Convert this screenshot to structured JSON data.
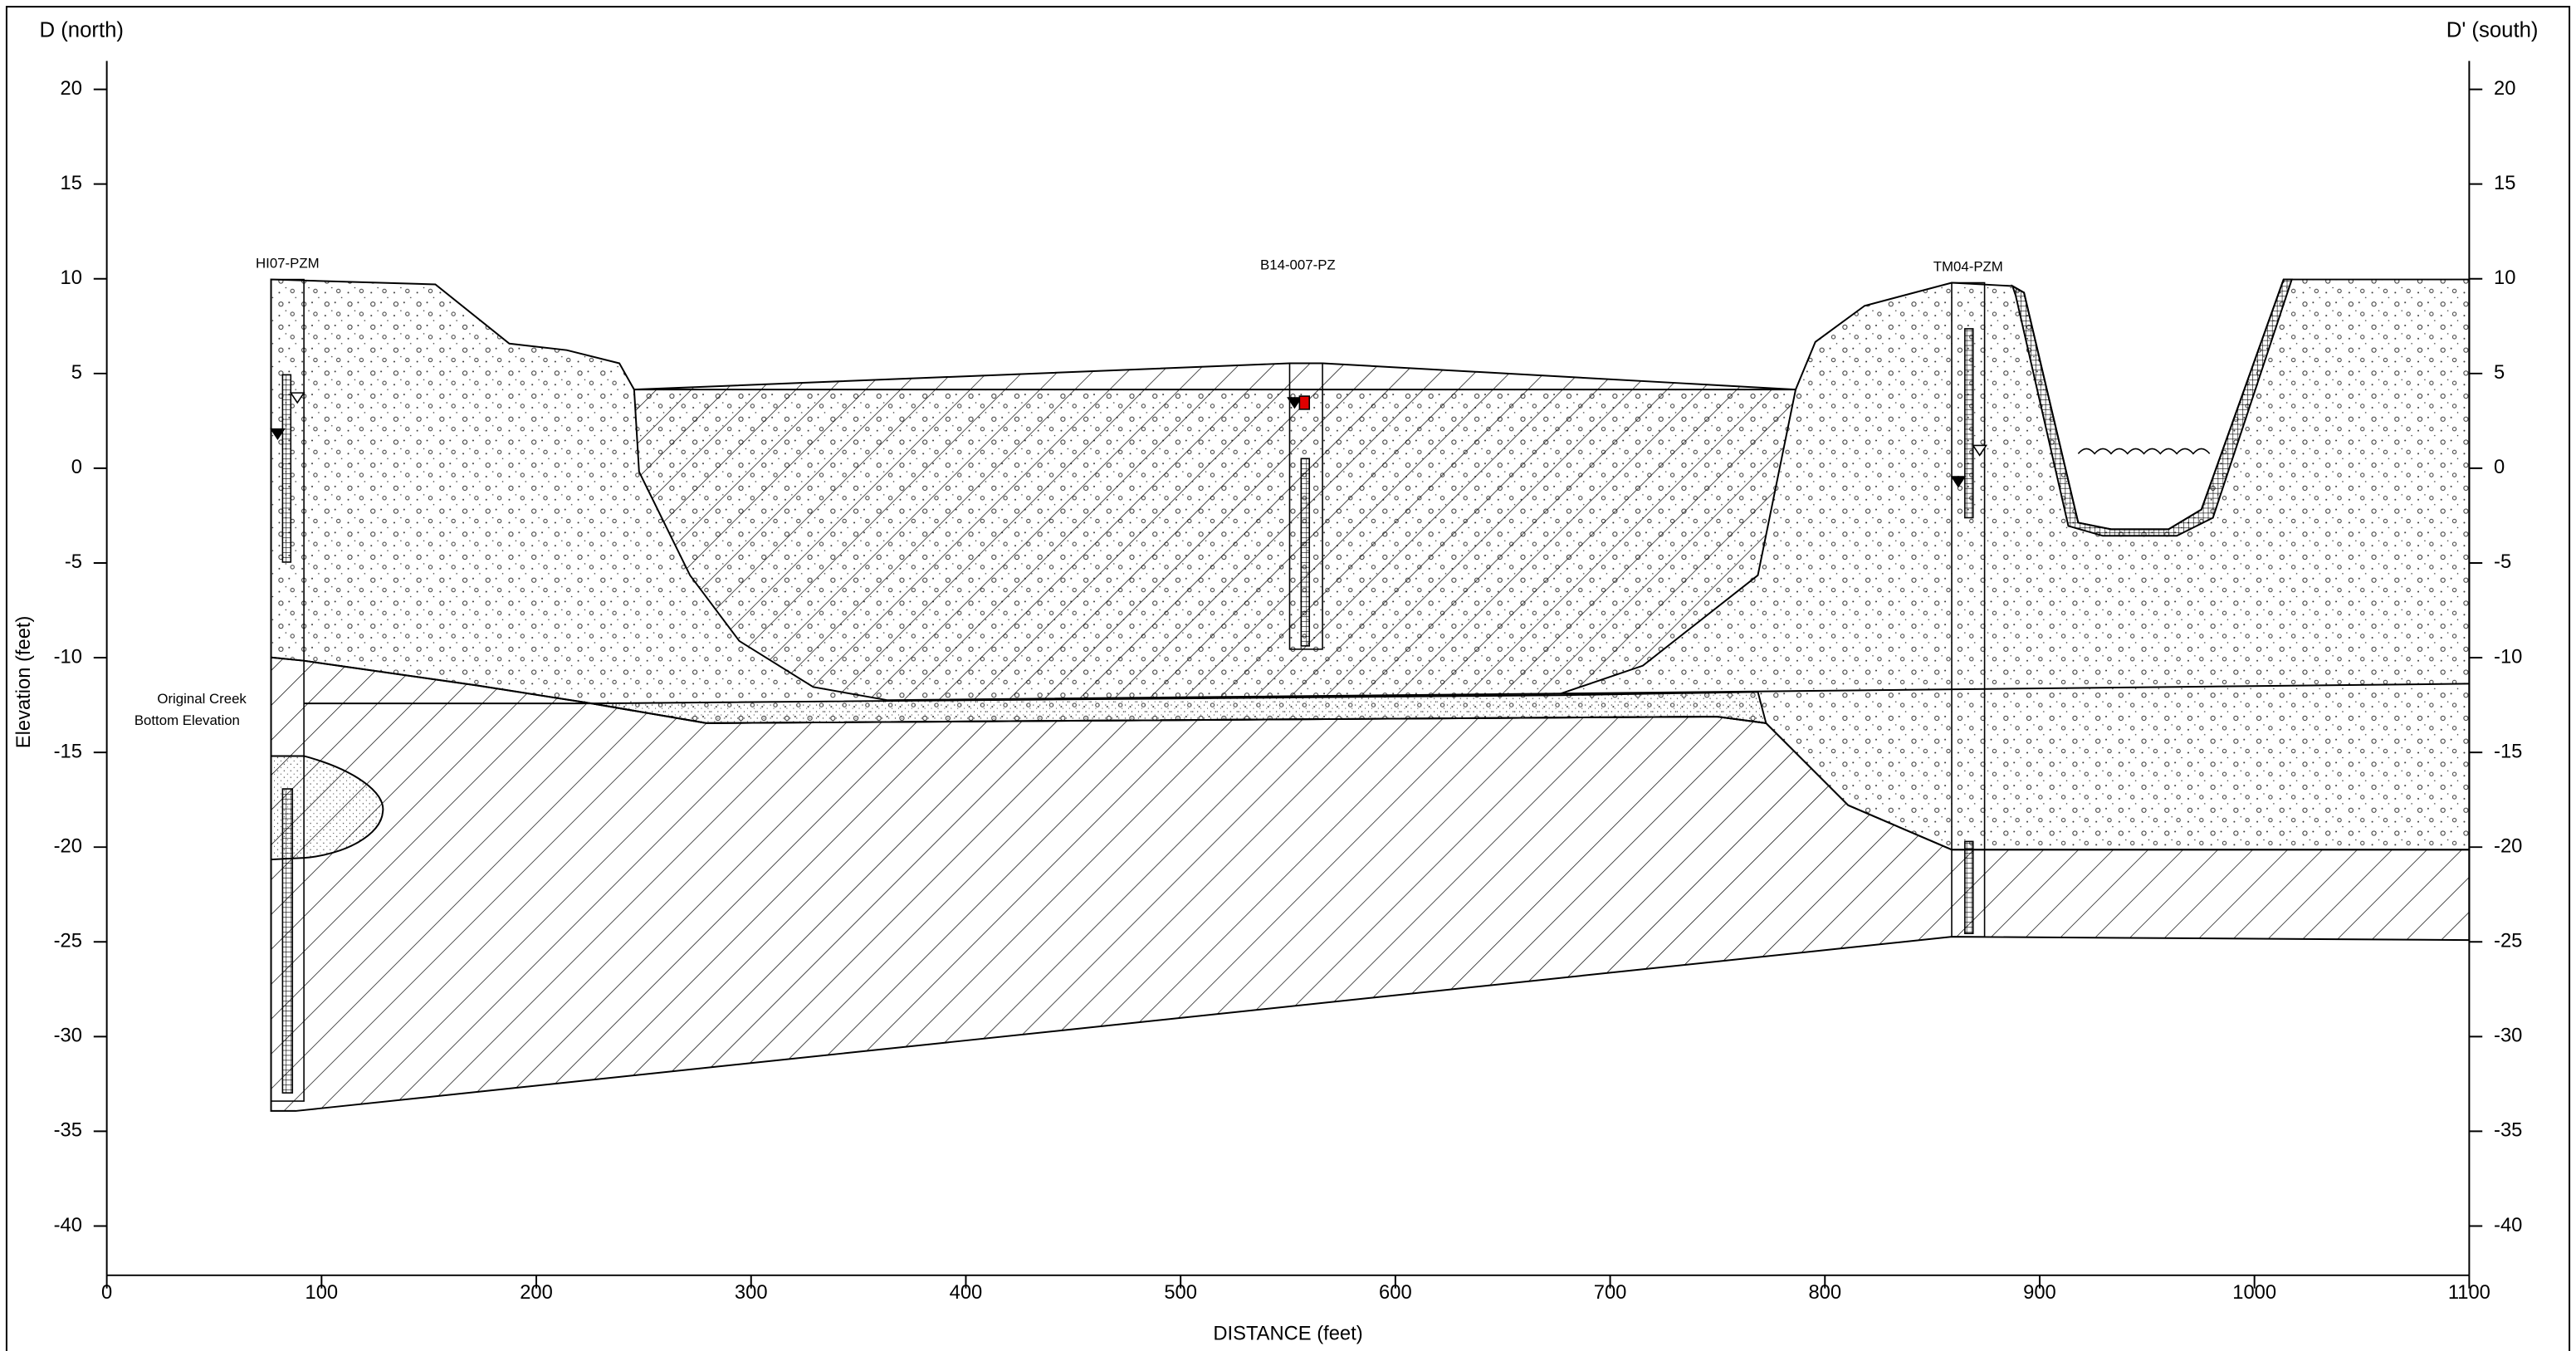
{
  "chart_data": {
    "type": "cross-section",
    "title_left": "D (north)",
    "title_right": "D' (south)",
    "xlabel": "DISTANCE (feet)",
    "ylabel": "Elevation (feet)",
    "xlim": [
      0,
      1100
    ],
    "xticks": [
      0,
      100,
      200,
      300,
      400,
      500,
      600,
      700,
      800,
      900,
      1000,
      1100
    ],
    "ylim": [
      -42.6,
      21.5
    ],
    "yticks": [
      -40,
      -35,
      -30,
      -25,
      -20,
      -15,
      -10,
      -5,
      0,
      5,
      10,
      15,
      20
    ],
    "y2lim": [
      -42.6,
      21.5
    ],
    "y2ticks": [
      -40,
      -35,
      -30,
      -25,
      -20,
      -15,
      -10,
      -5,
      0,
      5,
      10,
      15,
      20
    ],
    "wells": [
      "HI07-PZM",
      "B14-007-PZ",
      "TM04-PZM"
    ],
    "annotation": [
      "Original Creek",
      "Bottom Elevation"
    ]
  }
}
